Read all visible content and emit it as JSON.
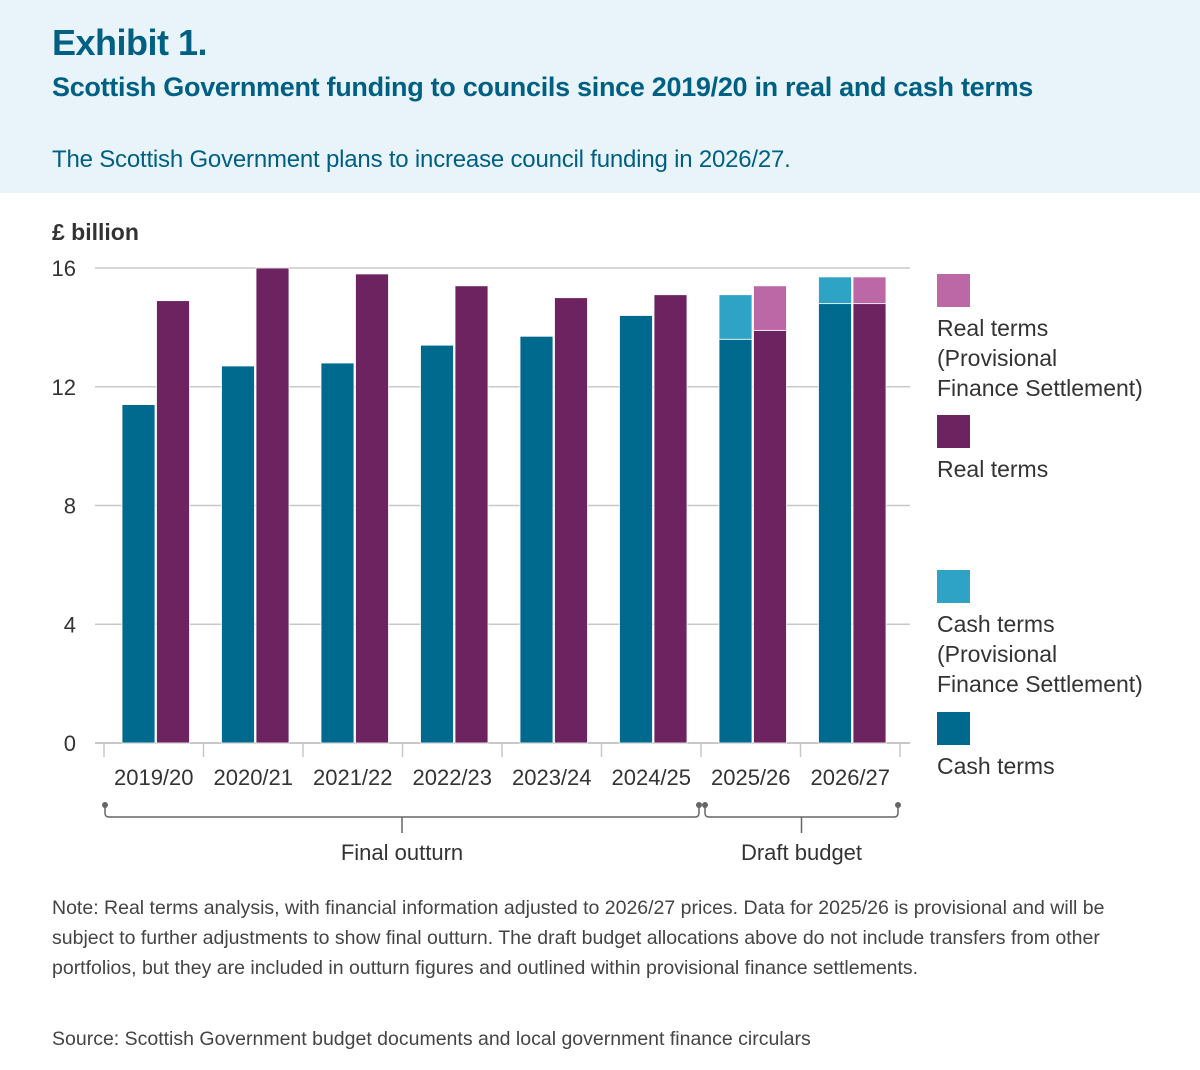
{
  "header": {
    "exhibit": "Exhibit 1.",
    "title": "Scottish Government funding to councils since 2019/20 in real and cash terms",
    "subtitle": "The Scottish Government plans to increase council funding in 2026/27."
  },
  "colors": {
    "cash": "#006a8e",
    "cash_provisional": "#2ea3c6",
    "real": "#6d2360",
    "real_provisional": "#bd68a6",
    "header_bg": "#e9f4fa",
    "title": "#006083"
  },
  "chart_data": {
    "type": "bar",
    "title": "Scottish Government funding to councils since 2019/20 in real and cash terms",
    "ylabel": "£ billion",
    "xlabel": "",
    "ylim": [
      0,
      16
    ],
    "yticks": [
      0,
      4,
      8,
      12,
      16
    ],
    "grid": true,
    "legend_position": "right",
    "categories": [
      "2019/20",
      "2020/21",
      "2021/22",
      "2022/23",
      "2023/24",
      "2024/25",
      "2025/26",
      "2026/27"
    ],
    "series": [
      {
        "name": "Cash terms",
        "key": "cash",
        "stack": "cash",
        "values": [
          11.4,
          12.7,
          12.8,
          13.4,
          13.7,
          14.4,
          13.6,
          14.8
        ]
      },
      {
        "name": "Cash terms (Provisional Finance Settlement)",
        "key": "cash_provisional",
        "stack": "cash",
        "values": [
          0,
          0,
          0,
          0,
          0,
          0,
          1.5,
          0.9
        ]
      },
      {
        "name": "Real terms",
        "key": "real",
        "stack": "real",
        "values": [
          14.9,
          16.0,
          15.8,
          15.4,
          15.0,
          15.1,
          13.9,
          14.8
        ]
      },
      {
        "name": "Real terms (Provisional Finance Settlement)",
        "key": "real_provisional",
        "stack": "real",
        "values": [
          0,
          0,
          0,
          0,
          0,
          0,
          1.5,
          0.9
        ]
      }
    ],
    "legend": [
      {
        "label_lines": [
          "Real terms",
          "(Provisional",
          "Finance Settlement)"
        ],
        "key": "real_provisional"
      },
      {
        "label_lines": [
          "Real terms"
        ],
        "key": "real"
      },
      {
        "label_lines": [
          "Cash terms",
          "(Provisional",
          "Finance Settlement)"
        ],
        "key": "cash_provisional"
      },
      {
        "label_lines": [
          "Cash terms"
        ],
        "key": "cash"
      }
    ],
    "groups": [
      {
        "label": "Final outturn",
        "from": "2019/20",
        "to": "2024/25"
      },
      {
        "label": "Draft budget",
        "from": "2025/26",
        "to": "2026/27"
      }
    ]
  },
  "footer": {
    "note": "Note: Real terms analysis, with financial information adjusted to 2026/27 prices. Data for 2025/26 is provisional and will be subject to further adjustments to show final outturn. The draft budget allocations above do not include transfers from other portfolios, but they are included in outturn figures and outlined within provisional finance settlements.",
    "source": "Source: Scottish Government budget documents and local government finance circulars"
  }
}
